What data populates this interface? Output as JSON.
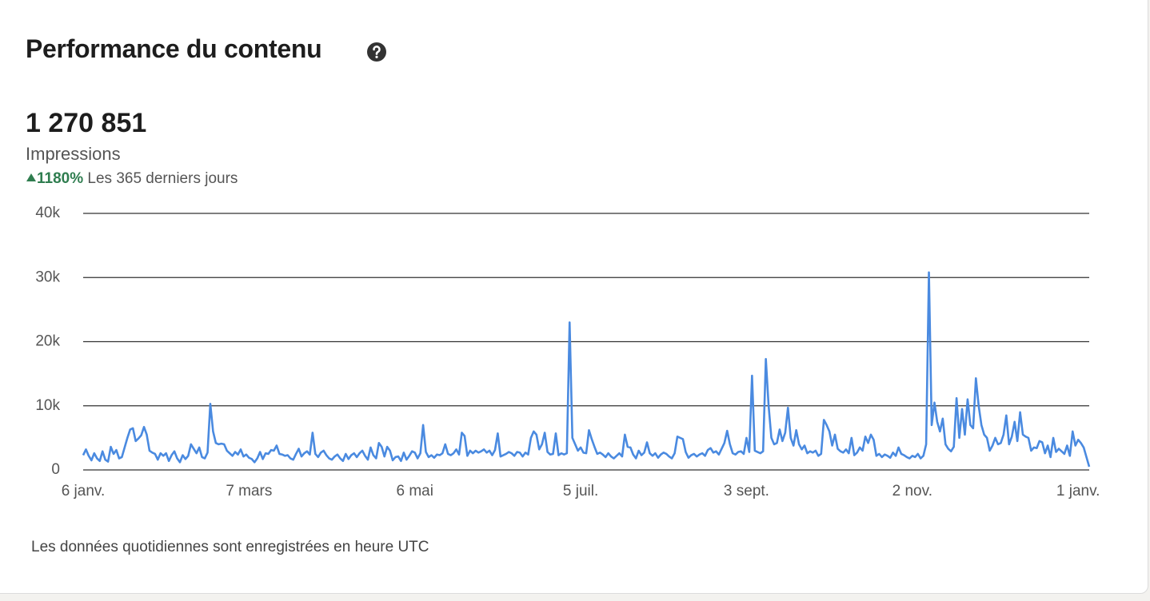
{
  "header": {
    "title": "Performance du contenu",
    "total": "1 270 851",
    "metric": "Impressions",
    "change": "1180%",
    "period": "Les 365 derniers jours"
  },
  "footnote": "Les données quotidiennes sont enregistrées en heure UTC",
  "chart_data": {
    "type": "line",
    "color": "#4a8ae0",
    "grid": true,
    "ylim": [
      0,
      40000
    ],
    "yticks": [
      0,
      {
        "value": 10000,
        "label": "10k"
      },
      {
        "value": 20000,
        "label": "20k"
      },
      {
        "value": 30000,
        "label": "30k"
      },
      {
        "value": 40000,
        "label": "40k"
      }
    ],
    "categories": [
      "6 janv.",
      null,
      null,
      null,
      null,
      null,
      null,
      null,
      null,
      null,
      null,
      null,
      null,
      null,
      null,
      null,
      null,
      null,
      null,
      null,
      null,
      null,
      null,
      null,
      null,
      null,
      null,
      null,
      null,
      null,
      null,
      null,
      null,
      null,
      null,
      null,
      null,
      null,
      null,
      null,
      null,
      null,
      null,
      null,
      null,
      null,
      null,
      null,
      null,
      null,
      null,
      null,
      null,
      null,
      null,
      null,
      null,
      null,
      null,
      null,
      "7 mars",
      null,
      null,
      null,
      null,
      null,
      null,
      null,
      null,
      null,
      null,
      null,
      null,
      null,
      null,
      null,
      null,
      null,
      null,
      null,
      null,
      null,
      null,
      null,
      null,
      null,
      null,
      null,
      null,
      null,
      null,
      null,
      null,
      null,
      null,
      null,
      null,
      null,
      null,
      null,
      null,
      null,
      null,
      null,
      null,
      null,
      null,
      null,
      null,
      null,
      null,
      null,
      null,
      null,
      null,
      null,
      null,
      null,
      null,
      null,
      "6 mai",
      null,
      null,
      null,
      null,
      null,
      null,
      null,
      null,
      null,
      null,
      null,
      null,
      null,
      null,
      null,
      null,
      null,
      null,
      null,
      null,
      null,
      null,
      null,
      null,
      null,
      null,
      null,
      null,
      null,
      null,
      null,
      null,
      null,
      null,
      null,
      null,
      null,
      null,
      null,
      null,
      null,
      null,
      null,
      null,
      null,
      null,
      null,
      null,
      null,
      null,
      null,
      null,
      null,
      null,
      null,
      null,
      null,
      null,
      null,
      "5 juil.",
      null,
      null,
      null,
      null,
      null,
      null,
      null,
      null,
      null,
      null,
      null,
      null,
      null,
      null,
      null,
      null,
      null,
      null,
      null,
      null,
      null,
      null,
      null,
      null,
      null,
      null,
      null,
      null,
      null,
      null,
      null,
      null,
      null,
      null,
      null,
      null,
      null,
      null,
      null,
      null,
      null,
      null,
      null,
      null,
      null,
      null,
      null,
      null,
      null,
      null,
      null,
      null,
      null,
      null,
      null,
      null,
      null,
      null,
      null,
      "3 sept.",
      null,
      null,
      null,
      null,
      null,
      null,
      null,
      null,
      null,
      null,
      null,
      null,
      null,
      null,
      null,
      null,
      null,
      null,
      null,
      null,
      null,
      null,
      null,
      null,
      null,
      null,
      null,
      null,
      null,
      null,
      null,
      null,
      null,
      null,
      null,
      null,
      null,
      null,
      null,
      null,
      null,
      null,
      null,
      null,
      null,
      null,
      null,
      null,
      null,
      null,
      null,
      null,
      null,
      null,
      null,
      null,
      null,
      null,
      null,
      "2 nov.",
      null,
      null,
      null,
      null,
      null,
      null,
      null,
      null,
      null,
      null,
      null,
      null,
      null,
      null,
      null,
      null,
      null,
      null,
      null,
      null,
      null,
      null,
      null,
      null,
      null,
      null,
      null,
      null,
      null,
      null,
      null,
      null,
      null,
      null,
      null,
      null,
      null,
      null,
      null,
      null,
      null,
      null,
      null,
      null,
      null,
      null,
      null,
      null,
      null,
      null,
      null,
      null,
      null,
      null,
      null,
      null,
      null,
      null,
      null,
      "1 janv.",
      null,
      null,
      null,
      null
    ],
    "values": [
      2300,
      3200,
      2200,
      1500,
      2600,
      1800,
      1400,
      2900,
      1600,
      1300,
      3600,
      2500,
      3100,
      1800,
      2000,
      3500,
      5000,
      6300,
      6500,
      4500,
      4900,
      5400,
      6700,
      5500,
      3000,
      2700,
      2500,
      1600,
      2600,
      2200,
      2600,
      1400,
      2300,
      2900,
      1800,
      1200,
      2300,
      1700,
      2200,
      4000,
      3300,
      2600,
      3500,
      2000,
      1800,
      2700,
      10300,
      6000,
      4200,
      4000,
      4100,
      4000,
      3000,
      2600,
      2200,
      2800,
      2400,
      3200,
      2100,
      2400,
      1900,
      1700,
      1200,
      1800,
      2800,
      1700,
      2600,
      2500,
      3100,
      3000,
      3800,
      2500,
      2400,
      2200,
      2300,
      1800,
      1600,
      2500,
      3300,
      2100,
      2600,
      2900,
      2400,
      5800,
      2500,
      2000,
      2700,
      3000,
      2300,
      1800,
      1600,
      2100,
      2400,
      1800,
      1400,
      2500,
      1700,
      2300,
      2600,
      2000,
      2600,
      3000,
      2200,
      1600,
      3500,
      2300,
      1800,
      4200,
      3600,
      2100,
      3600,
      3000,
      1500,
      2000,
      2100,
      1400,
      2700,
      1600,
      2200,
      2900,
      2700,
      1800,
      2600,
      7000,
      2800,
      2000,
      2300,
      1900,
      2400,
      2300,
      2600,
      4000,
      2500,
      2300,
      2600,
      3200,
      2400,
      5800,
      5300,
      2200,
      3000,
      2600,
      3000,
      2700,
      2900,
      3200,
      2700,
      3000,
      2300,
      3100,
      5700,
      2100,
      2300,
      2500,
      2800,
      2600,
      2200,
      2800,
      2700,
      2100,
      2700,
      2400,
      5000,
      6000,
      5500,
      3200,
      4000,
      5800,
      2800,
      2400,
      2500,
      5700,
      2300,
      2600,
      2400,
      2600,
      23000,
      5000,
      4000,
      3000,
      3500,
      2700,
      2600,
      6200,
      4800,
      3600,
      2500,
      2700,
      2400,
      2000,
      2600,
      2100,
      1800,
      2200,
      2600,
      2100,
      5500,
      3600,
      3500,
      2400,
      1800,
      3000,
      2300,
      2700,
      4300,
      2600,
      2200,
      2600,
      1900,
      2400,
      2700,
      2500,
      2100,
      1800,
      2600,
      5200,
      5000,
      4800,
      2800,
      1900,
      2300,
      2500,
      2100,
      2400,
      2600,
      2200,
      3100,
      3400,
      2700,
      2900,
      2400,
      3300,
      4200,
      6100,
      4000,
      2600,
      2400,
      2800,
      2900,
      2500,
      5000,
      2800,
      14700,
      3000,
      2800,
      2600,
      2900,
      17300,
      10000,
      5000,
      4000,
      4200,
      6300,
      4500,
      5800,
      9700,
      5000,
      3800,
      6200,
      4000,
      3200,
      3800,
      2600,
      2900,
      2700,
      3000,
      2200,
      2500,
      7800,
      7000,
      6000,
      3800,
      5500,
      3300,
      2900,
      2700,
      3200,
      2600,
      5000,
      2300,
      2700,
      3500,
      3000,
      5200,
      4200,
      5500,
      4700,
      2200,
      2500,
      2000,
      2400,
      2200,
      1900,
      2700,
      2200,
      3500,
      2500,
      2300,
      2000,
      1800,
      2200,
      2000,
      2500,
      1800,
      2200,
      4000,
      30800,
      7000,
      10500,
      7500,
      6000,
      8000,
      4000,
      3300,
      2900,
      3600,
      11200,
      5000,
      9500,
      5500,
      11000,
      7000,
      6500,
      14300,
      10000,
      7000,
      5500,
      5000,
      3000,
      3800,
      5000,
      4000,
      4200,
      5500,
      8500,
      4000,
      5200,
      7500,
      4500,
      9000,
      5500,
      5200,
      5000,
      3000,
      3500,
      3400,
      4500,
      4300,
      2600,
      3800,
      2000,
      5000,
      2800,
      3300,
      2900,
      2500,
      3800,
      2200,
      6000,
      3800,
      4700,
      4200,
      3500,
      2000,
      500
    ]
  }
}
